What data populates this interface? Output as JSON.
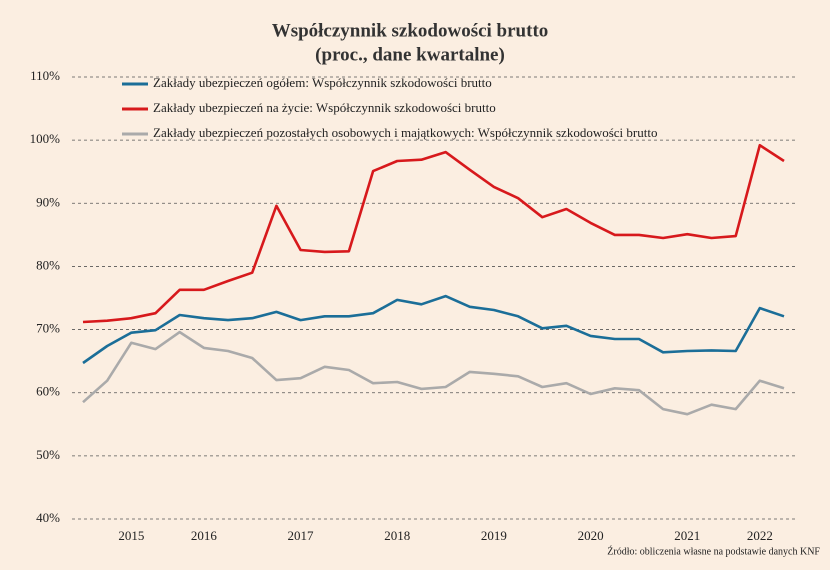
{
  "chart_data": {
    "type": "line",
    "title": "Współczynnik szkodowości brutto",
    "subtitle": "(proc., dane kwartalne)",
    "source": "Źródło: obliczenia własne na podstawie danych KNF",
    "categories": [
      null,
      null,
      "2015",
      null,
      null,
      "2016",
      null,
      null,
      null,
      "2017",
      null,
      null,
      null,
      "2018",
      null,
      null,
      null,
      "2019",
      null,
      null,
      null,
      "2020",
      null,
      null,
      null,
      "2021",
      null,
      null,
      "2022",
      null
    ],
    "series": [
      {
        "name": "Zakłady ubezpieczeń ogółem: Współczynnik szkodowości brutto",
        "color": "#1b6e98",
        "values": [
          64.7,
          67.4,
          69.5,
          69.9,
          72.3,
          71.8,
          71.5,
          71.8,
          72.8,
          71.5,
          72.1,
          72.1,
          72.6,
          74.7,
          74.0,
          75.3,
          73.6,
          73.1,
          72.1,
          70.2,
          70.6,
          69.0,
          68.5,
          68.5,
          66.4,
          66.6,
          66.7,
          66.6,
          73.4,
          72.1
        ]
      },
      {
        "name": "Zakłady ubezpieczeń na życie: Współczynnik szkodowości brutto",
        "color": "#d7191c",
        "values": [
          71.2,
          71.4,
          71.8,
          72.6,
          76.3,
          76.3,
          77.7,
          79.0,
          89.6,
          82.6,
          82.3,
          82.4,
          95.1,
          96.7,
          96.9,
          98.1,
          95.3,
          92.6,
          90.8,
          87.8,
          89.1,
          86.9,
          85.0,
          85.0,
          84.5,
          85.1,
          84.5,
          84.8,
          99.2,
          96.7
        ]
      },
      {
        "name": "Zakłady ubezpieczeń pozostałych osobowych i majątkowych: Współczynnik szkodowości brutto",
        "color": "#aaaaaa",
        "values": [
          58.5,
          61.9,
          67.9,
          66.9,
          69.6,
          67.1,
          66.6,
          65.5,
          62.0,
          62.3,
          64.1,
          63.6,
          61.5,
          61.7,
          60.6,
          60.9,
          63.3,
          63.0,
          62.6,
          60.9,
          61.5,
          59.8,
          60.7,
          60.4,
          57.4,
          56.6,
          58.1,
          57.4,
          61.9,
          60.7
        ]
      }
    ],
    "ylim": [
      40,
      110
    ],
    "yticks": [
      {
        "value": 40,
        "label": "40%"
      },
      {
        "value": 50,
        "label": "50%"
      },
      {
        "value": 60,
        "label": "60%"
      },
      {
        "value": 70,
        "label": "70%"
      },
      {
        "value": 80,
        "label": "80%"
      },
      {
        "value": 90,
        "label": "90%"
      },
      {
        "value": 100,
        "label": "100%"
      },
      {
        "value": 110,
        "label": "110%"
      }
    ],
    "grid": true,
    "legend": "top-left"
  }
}
